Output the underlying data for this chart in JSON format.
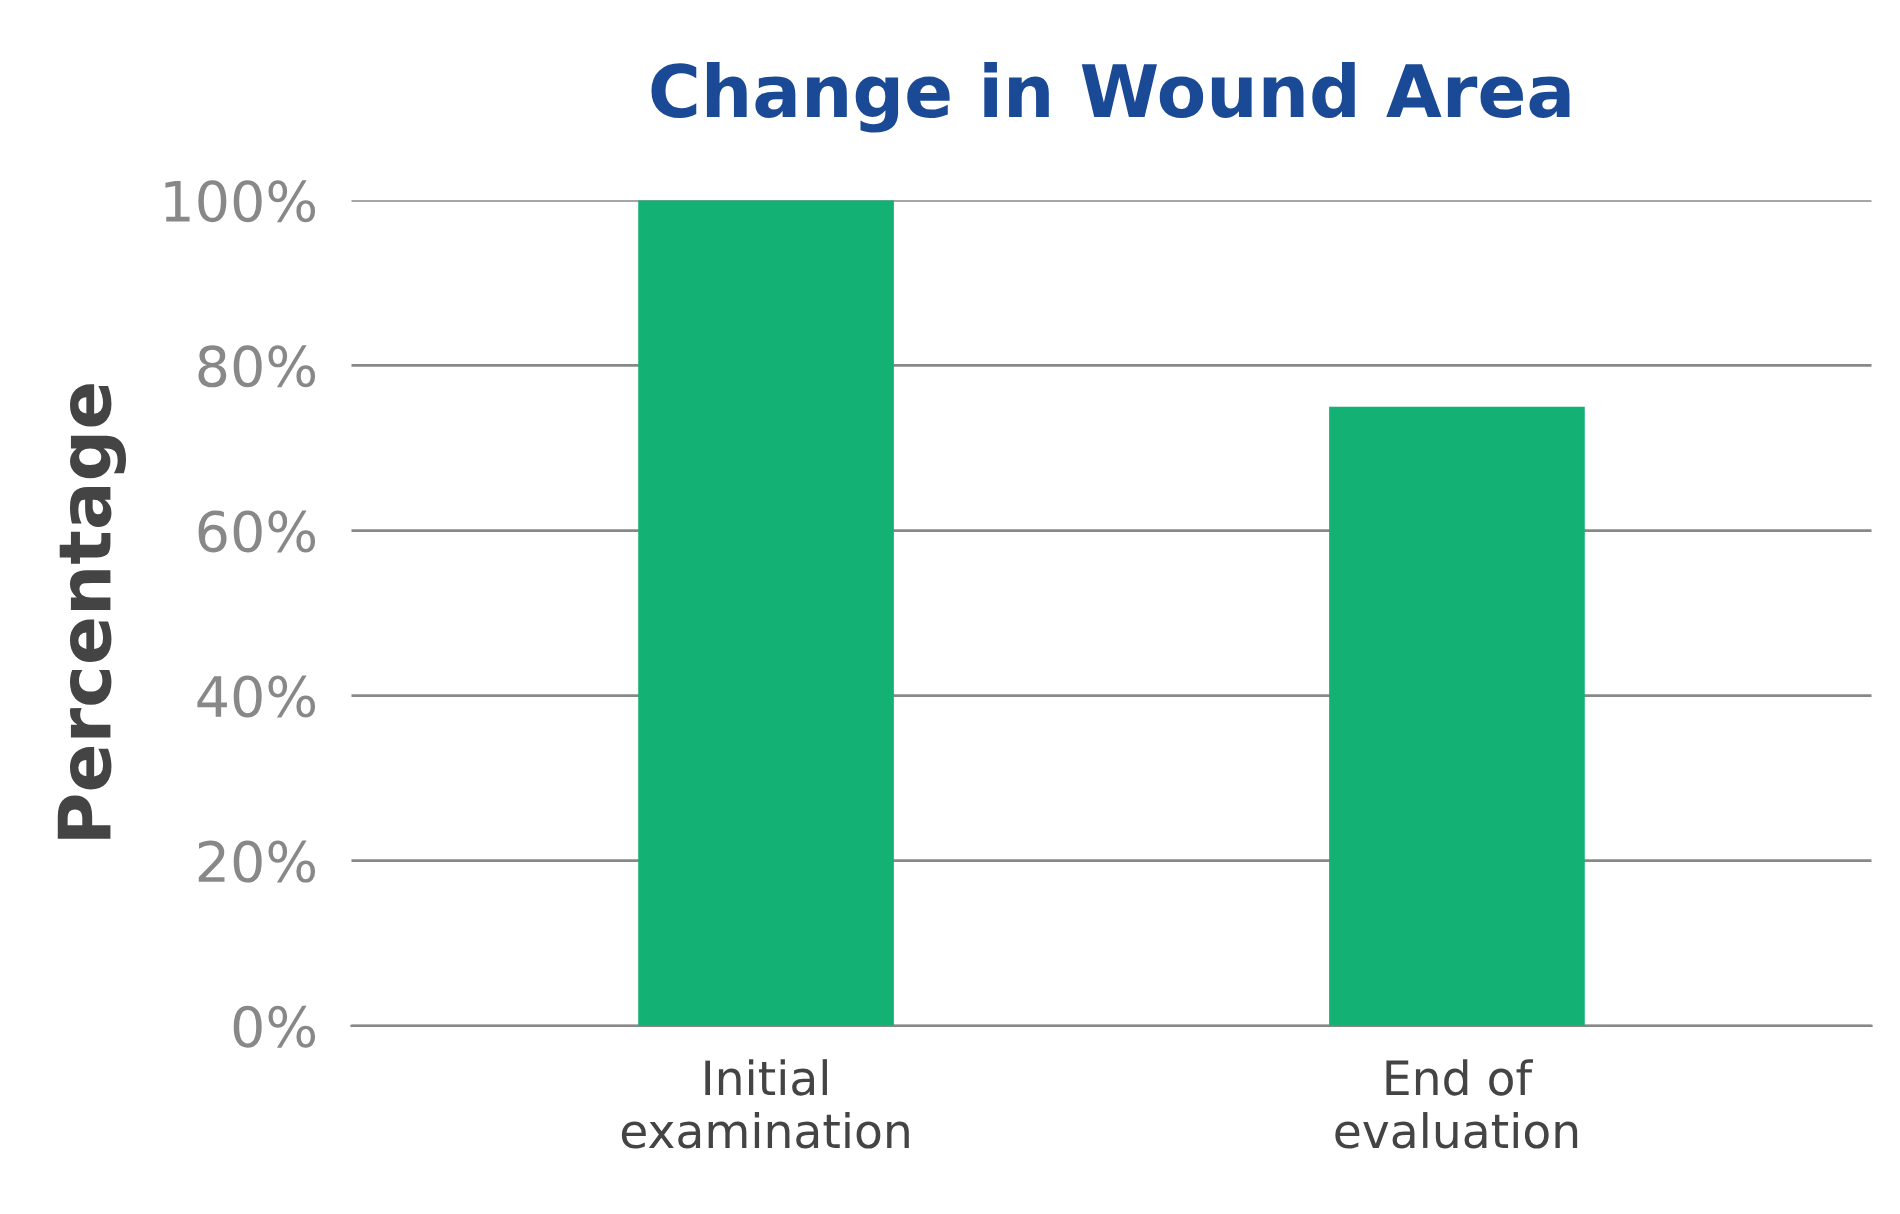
{
  "chart_data": {
    "type": "bar",
    "title": "Change in Wound Area",
    "ylabel": "Percentage",
    "categories": [
      "Initial\nexamination",
      "End of\nevaluation"
    ],
    "values": [
      100,
      75
    ],
    "color": "#13b173",
    "ylim": [
      0,
      100
    ],
    "yticks": [
      {
        "value": 0,
        "label": "0%"
      },
      {
        "value": 20,
        "label": "20%"
      },
      {
        "value": 40,
        "label": "40%"
      },
      {
        "value": 60,
        "label": "60%"
      },
      {
        "value": 80,
        "label": "80%"
      },
      {
        "value": 100,
        "label": "100%"
      }
    ],
    "grid": "y"
  }
}
